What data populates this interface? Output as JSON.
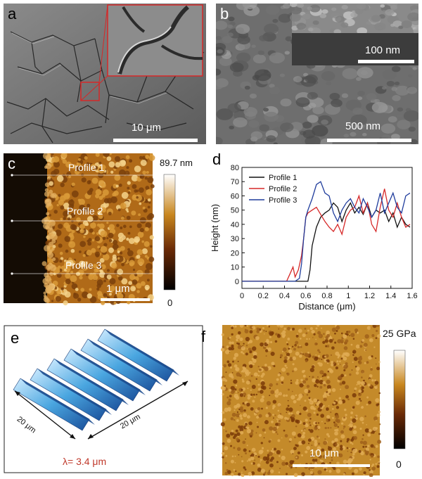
{
  "panels": {
    "a": {
      "label": "a",
      "scale": "10 μm"
    },
    "b": {
      "label": "b",
      "scale_main": "500 nm",
      "scale_inset": "100 nm"
    },
    "c": {
      "label": "c",
      "profiles": [
        "Profile 1",
        "Profile 2",
        "Profile 3"
      ],
      "scale": "1 μm",
      "cb_max": "89.7 nm",
      "cb_min": "0"
    },
    "d": {
      "label": "d"
    },
    "e": {
      "label": "e",
      "dim_x": "20 μm",
      "dim_y": "20 μm",
      "lambda": "λ= 3.4 μm"
    },
    "f": {
      "label": "f",
      "scale": "10 μm",
      "cb_max": "25 GPa",
      "cb_min": "0"
    }
  },
  "chart_data": {
    "type": "line",
    "xlabel": "Distance (μm)",
    "ylabel": "Height (nm)",
    "xlim": [
      0,
      1.6
    ],
    "ylim": [
      -5,
      80
    ],
    "xticks": [
      "0",
      "0.2",
      "0.4",
      "0.6",
      "0.8",
      "1",
      "1.2",
      "1.4",
      "1.6"
    ],
    "yticks": [
      "0",
      "10",
      "20",
      "30",
      "40",
      "50",
      "60",
      "70",
      "80"
    ],
    "legend": "top-left",
    "series": [
      {
        "name": "Profile 1",
        "color": "#111111",
        "x": [
          0,
          0.3,
          0.5,
          0.62,
          0.64,
          0.66,
          0.7,
          0.74,
          0.78,
          0.82,
          0.86,
          0.9,
          0.94,
          0.98,
          1.02,
          1.06,
          1.1,
          1.14,
          1.18,
          1.22,
          1.26,
          1.3,
          1.34,
          1.38,
          1.42,
          1.46,
          1.5,
          1.54,
          1.58
        ],
        "y": [
          0,
          0,
          0,
          0,
          8,
          25,
          38,
          45,
          48,
          50,
          55,
          52,
          42,
          50,
          55,
          48,
          52,
          47,
          55,
          45,
          50,
          48,
          50,
          42,
          48,
          38,
          45,
          40,
          38
        ]
      },
      {
        "name": "Profile 2",
        "color": "#d62828",
        "x": [
          0,
          0.3,
          0.42,
          0.45,
          0.48,
          0.5,
          0.53,
          0.56,
          0.58,
          0.6,
          0.62,
          0.66,
          0.7,
          0.74,
          0.78,
          0.82,
          0.86,
          0.9,
          0.94,
          0.98,
          1.02,
          1.06,
          1.1,
          1.14,
          1.18,
          1.22,
          1.26,
          1.3,
          1.34,
          1.38,
          1.42,
          1.46,
          1.5,
          1.54,
          1.58
        ],
        "y": [
          0,
          0,
          0,
          5,
          10,
          3,
          8,
          18,
          30,
          45,
          48,
          50,
          52,
          47,
          42,
          38,
          35,
          40,
          33,
          45,
          50,
          52,
          60,
          48,
          55,
          40,
          35,
          52,
          65,
          50,
          45,
          55,
          45,
          38,
          40
        ]
      },
      {
        "name": "Profile 3",
        "color": "#1f3c9c",
        "x": [
          0,
          0.3,
          0.5,
          0.54,
          0.56,
          0.58,
          0.6,
          0.62,
          0.66,
          0.7,
          0.74,
          0.78,
          0.82,
          0.86,
          0.9,
          0.94,
          0.98,
          1.02,
          1.06,
          1.1,
          1.14,
          1.18,
          1.22,
          1.26,
          1.3,
          1.34,
          1.38,
          1.42,
          1.46,
          1.5,
          1.54,
          1.58
        ],
        "y": [
          0,
          0,
          0,
          2,
          12,
          30,
          45,
          50,
          58,
          68,
          70,
          62,
          60,
          48,
          42,
          50,
          55,
          58,
          52,
          48,
          58,
          52,
          45,
          50,
          62,
          48,
          55,
          62,
          52,
          48,
          60,
          62
        ]
      }
    ]
  }
}
